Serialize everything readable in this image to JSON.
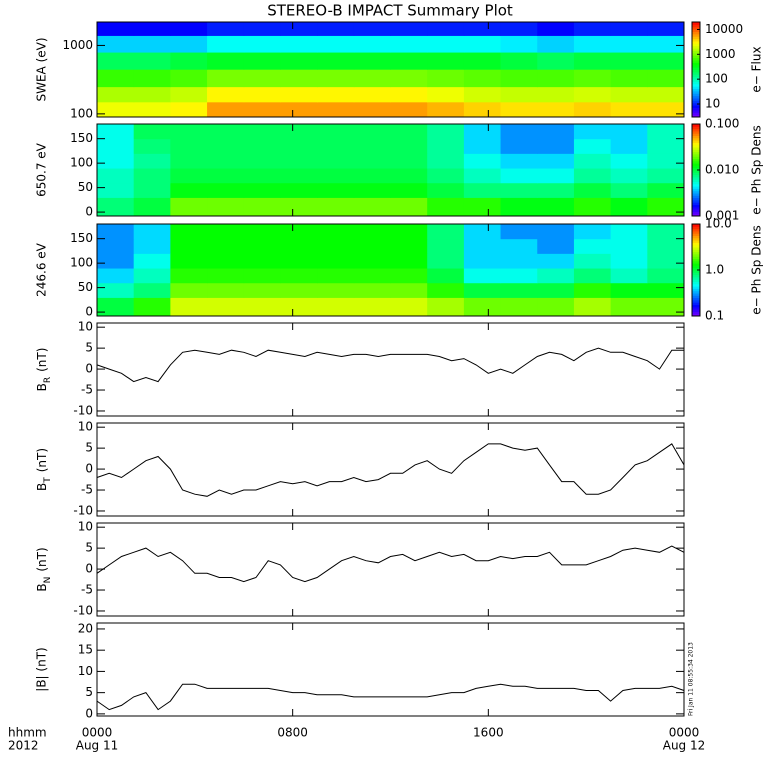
{
  "title": "STEREO-B IMPACT Summary Plot",
  "x_axis": {
    "xlim": [
      0,
      24
    ],
    "xticks": [
      {
        "value": 0,
        "label": "0000"
      },
      {
        "value": 8,
        "label": "0800"
      },
      {
        "value": 16,
        "label": "1600"
      },
      {
        "value": 24,
        "label": "0000"
      }
    ],
    "row_label": "hhmm",
    "year_label": "2012",
    "date_labels": [
      {
        "value": 0,
        "label": "Aug 11"
      },
      {
        "value": 24,
        "label": "Aug 12"
      }
    ]
  },
  "timestamp": "Fri Jan 11 08:55:34 2013",
  "x": [
    0,
    0.5,
    1,
    1.5,
    2,
    2.5,
    3,
    3.5,
    4,
    4.5,
    5,
    5.5,
    6,
    6.5,
    7,
    7.5,
    8,
    8.5,
    9,
    9.5,
    10,
    10.5,
    11,
    11.5,
    12,
    12.5,
    13,
    13.5,
    14,
    14.5,
    15,
    15.5,
    16,
    16.5,
    17,
    17.5,
    18,
    18.5,
    19,
    19.5,
    20,
    20.5,
    21,
    21.5,
    22,
    22.5,
    23,
    23.5,
    24
  ],
  "chart_data": [
    {
      "type": "heatmap",
      "ylabel": "SWEA (eV)",
      "ylog": true,
      "ylim": [
        90,
        2200
      ],
      "yticks": [
        100,
        1000
      ],
      "xbins": [
        0,
        1.5,
        3,
        4.5,
        6,
        7.5,
        9,
        10.5,
        12,
        13.5,
        15,
        16.5,
        18,
        19.5,
        21,
        22.5,
        24
      ],
      "ybins": [
        90,
        150,
        250,
        450,
        800,
        1400,
        2200
      ],
      "values": [
        [
          2500,
          2500,
          3000,
          6000,
          6000,
          6000,
          6000,
          6000,
          6000,
          5000,
          4000,
          3500,
          3500,
          4000,
          3500,
          3500
        ],
        [
          1500,
          1500,
          1800,
          3000,
          3000,
          3000,
          3000,
          3000,
          3000,
          2500,
          2000,
          1800,
          1800,
          2000,
          1800,
          1800
        ],
        [
          600,
          600,
          700,
          1000,
          1000,
          1000,
          1000,
          1000,
          1000,
          900,
          800,
          700,
          700,
          800,
          700,
          700
        ],
        [
          200,
          200,
          250,
          300,
          300,
          300,
          300,
          300,
          300,
          300,
          300,
          250,
          200,
          250,
          250,
          250
        ],
        [
          40,
          40,
          40,
          60,
          60,
          60,
          60,
          60,
          60,
          60,
          60,
          50,
          40,
          50,
          50,
          50
        ],
        [
          8,
          8,
          8,
          10,
          10,
          10,
          10,
          10,
          10,
          10,
          10,
          10,
          8,
          10,
          10,
          10
        ]
      ],
      "clim": [
        3,
        20000
      ],
      "cticks": [
        10,
        100,
        1000,
        10000
      ],
      "clabel": "e− Flux"
    },
    {
      "type": "heatmap",
      "ylabel": "650.7 eV",
      "ylim": [
        -8,
        180
      ],
      "yticks": [
        0,
        50,
        100,
        150
      ],
      "xbins": [
        0,
        1.5,
        3,
        4.5,
        6,
        7.5,
        9,
        10.5,
        12,
        13.5,
        15,
        16.5,
        18,
        19.5,
        21,
        22.5,
        24
      ],
      "ybins": [
        -8,
        30,
        60,
        90,
        120,
        150,
        180
      ],
      "values": [
        [
          0.008,
          0.01,
          0.02,
          0.02,
          0.02,
          0.02,
          0.02,
          0.02,
          0.02,
          0.015,
          0.015,
          0.012,
          0.012,
          0.015,
          0.012,
          0.015
        ],
        [
          0.006,
          0.008,
          0.012,
          0.012,
          0.012,
          0.012,
          0.012,
          0.012,
          0.012,
          0.01,
          0.008,
          0.008,
          0.008,
          0.01,
          0.008,
          0.01
        ],
        [
          0.006,
          0.008,
          0.01,
          0.01,
          0.01,
          0.01,
          0.01,
          0.01,
          0.01,
          0.008,
          0.006,
          0.005,
          0.005,
          0.007,
          0.006,
          0.007
        ],
        [
          0.005,
          0.007,
          0.009,
          0.009,
          0.009,
          0.009,
          0.009,
          0.009,
          0.009,
          0.007,
          0.005,
          0.004,
          0.004,
          0.006,
          0.005,
          0.006
        ],
        [
          0.005,
          0.008,
          0.009,
          0.009,
          0.009,
          0.009,
          0.009,
          0.009,
          0.009,
          0.007,
          0.004,
          0.003,
          0.003,
          0.005,
          0.004,
          0.006
        ],
        [
          0.005,
          0.009,
          0.009,
          0.009,
          0.009,
          0.009,
          0.009,
          0.009,
          0.009,
          0.007,
          0.004,
          0.003,
          0.003,
          0.004,
          0.004,
          0.006
        ]
      ],
      "clim": [
        0.001,
        0.1
      ],
      "cticks": [
        {
          "value": 0.1,
          "label": "0.100"
        },
        {
          "value": 0.01,
          "label": "0.010"
        },
        {
          "value": 0.001,
          "label": "0.001"
        }
      ],
      "clabel": "e− Ph Sp Dens"
    },
    {
      "type": "heatmap",
      "ylabel": "246.6 eV",
      "ylim": [
        -8,
        180
      ],
      "yticks": [
        0,
        50,
        100,
        150
      ],
      "xbins": [
        0,
        1.5,
        3,
        4.5,
        6,
        7.5,
        9,
        10.5,
        12,
        13.5,
        15,
        16.5,
        18,
        19.5,
        21,
        22.5,
        24
      ],
      "ybins": [
        -8,
        30,
        60,
        90,
        120,
        150,
        180
      ],
      "values": [
        [
          1,
          1.5,
          3,
          3,
          3,
          3,
          3,
          3,
          3,
          2.5,
          2,
          2,
          2,
          2.5,
          2,
          2
        ],
        [
          0.6,
          0.8,
          2,
          2,
          2,
          2,
          2,
          2,
          2,
          1.5,
          1,
          1,
          1,
          1.5,
          1.2,
          1.2
        ],
        [
          0.4,
          0.6,
          1.5,
          1.5,
          1.5,
          1.5,
          1.5,
          1.5,
          1.5,
          1,
          0.5,
          0.5,
          0.6,
          0.8,
          0.6,
          0.8
        ],
        [
          0.3,
          0.5,
          1.3,
          1.3,
          1.3,
          1.3,
          1.3,
          1.3,
          1.3,
          0.8,
          0.4,
          0.4,
          0.4,
          0.6,
          0.5,
          0.7
        ],
        [
          0.3,
          0.4,
          1.3,
          1.3,
          1.3,
          1.3,
          1.3,
          1.3,
          1.3,
          0.8,
          0.4,
          0.4,
          0.3,
          0.5,
          0.5,
          0.7
        ],
        [
          0.3,
          0.4,
          1.3,
          1.3,
          1.3,
          1.3,
          1.3,
          1.3,
          1.3,
          0.8,
          0.4,
          0.3,
          0.3,
          0.4,
          0.5,
          0.7
        ]
      ],
      "clim": [
        0.1,
        10
      ],
      "cticks": [
        {
          "value": 10,
          "label": "10.0"
        },
        {
          "value": 1,
          "label": "1.0"
        },
        {
          "value": 0.1,
          "label": "0.1"
        }
      ],
      "clabel": "e− Ph Sp Dens"
    },
    {
      "type": "line",
      "ylabel": "B",
      "ylabel_sub": "R",
      "ylabel_unit": "(nT)",
      "ylim": [
        -11.2,
        11
      ],
      "yticks": [
        -10,
        -5,
        0,
        5,
        10
      ],
      "color": "#000000",
      "values": [
        1,
        0,
        -1,
        -3,
        -2,
        -3,
        1,
        4,
        4.5,
        4,
        3.5,
        4.5,
        4,
        3,
        4.5,
        4,
        3.5,
        3,
        4,
        3.5,
        3,
        3.5,
        3.5,
        3,
        3.5,
        3.5,
        3.5,
        3.5,
        3,
        2,
        2.5,
        1,
        -1,
        0,
        -1,
        1,
        3,
        4,
        3.5,
        2,
        4,
        5,
        4,
        4,
        3,
        2,
        0,
        4.5,
        4.5
      ]
    },
    {
      "type": "line",
      "ylabel": "B",
      "ylabel_sub": "T",
      "ylabel_unit": "(nT)",
      "ylim": [
        -11.2,
        11
      ],
      "yticks": [
        -10,
        -5,
        0,
        5,
        10
      ],
      "color": "#000000",
      "values": [
        -2,
        -1,
        -2,
        0,
        2,
        3,
        0,
        -5,
        -6,
        -6.5,
        -5,
        -6,
        -5,
        -5,
        -4,
        -3,
        -3.5,
        -3,
        -4,
        -3,
        -3,
        -2,
        -3,
        -2.5,
        -1,
        -1,
        1,
        2,
        0,
        -1,
        2,
        4,
        6,
        6,
        5,
        4.5,
        5,
        1,
        -3,
        -3,
        -6,
        -6,
        -5,
        -2,
        1,
        2,
        4,
        6,
        1
      ]
    },
    {
      "type": "line",
      "ylabel": "B",
      "ylabel_sub": "N",
      "ylabel_unit": "(nT)",
      "ylim": [
        -11.2,
        11
      ],
      "yticks": [
        -10,
        -5,
        0,
        5,
        10
      ],
      "color": "#000000",
      "values": [
        -1,
        1,
        3,
        4,
        5,
        3,
        4,
        2,
        -1,
        -1,
        -2,
        -2,
        -3,
        -2,
        2,
        1,
        -2,
        -3,
        -2,
        0,
        2,
        3,
        2,
        1.5,
        3,
        3.5,
        2,
        3,
        4,
        3,
        3.5,
        2,
        2,
        3,
        2.5,
        3,
        3,
        4,
        1,
        1,
        1,
        2,
        3,
        4.5,
        5,
        4.5,
        4,
        5.5,
        4
      ]
    },
    {
      "type": "line",
      "ylabel": "|B| (nT)",
      "ylim": [
        -0.5,
        21.4
      ],
      "yticks": [
        0,
        5,
        10,
        15,
        20
      ],
      "color": "#000000",
      "values": [
        3,
        1,
        2,
        4,
        5,
        1,
        3,
        7,
        7,
        6,
        6,
        6,
        6,
        6,
        6,
        5.5,
        5,
        5,
        4.5,
        4.5,
        4.5,
        4,
        4,
        4,
        4,
        4,
        4,
        4,
        4.5,
        5,
        5,
        6,
        6.5,
        7,
        6.5,
        6.5,
        6,
        6,
        6,
        6,
        5.5,
        5.5,
        3,
        5.5,
        6,
        6,
        6,
        6.5,
        5.5
      ]
    }
  ]
}
